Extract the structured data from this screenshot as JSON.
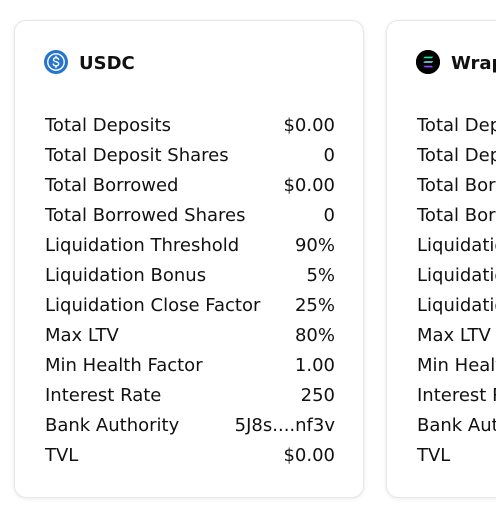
{
  "cards": [
    {
      "name": "USDC",
      "icon": "usdc-icon",
      "accent": "#2775ca",
      "rows": [
        {
          "label": "Total Deposits",
          "value": "$0.00"
        },
        {
          "label": "Total Deposit Shares",
          "value": "0"
        },
        {
          "label": "Total Borrowed",
          "value": "$0.00"
        },
        {
          "label": "Total Borrowed Shares",
          "value": "0"
        },
        {
          "label": "Liquidation Threshold",
          "value": "90%"
        },
        {
          "label": "Liquidation Bonus",
          "value": "5%"
        },
        {
          "label": "Liquidation Close Factor",
          "value": "25%"
        },
        {
          "label": "Max LTV",
          "value": "80%"
        },
        {
          "label": "Min Health Factor",
          "value": "1.00"
        },
        {
          "label": "Interest Rate",
          "value": "250"
        },
        {
          "label": "Bank Authority",
          "value": "5J8s....nf3v"
        },
        {
          "label": "TVL",
          "value": "$0.00"
        }
      ]
    },
    {
      "name": "Wrap",
      "icon": "solana-icon",
      "accent": "#000000",
      "rows": [
        {
          "label": "Total Dep"
        },
        {
          "label": "Total Dep"
        },
        {
          "label": "Total Borr"
        },
        {
          "label": "Total Borr"
        },
        {
          "label": "Liquidatio"
        },
        {
          "label": "Liquidatio"
        },
        {
          "label": "Liquidatio"
        },
        {
          "label": "Max LTV"
        },
        {
          "label": "Min Healt"
        },
        {
          "label": "Interest R"
        },
        {
          "label": "Bank Aut"
        },
        {
          "label": "TVL"
        }
      ]
    }
  ]
}
